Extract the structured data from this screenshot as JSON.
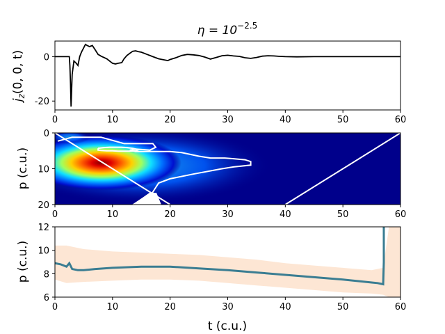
{
  "title": "η = 10^−2.5",
  "title_parts": {
    "base": "η = 10",
    "exponent": "−2.5"
  },
  "chart_data": [
    {
      "type": "line",
      "ylabel": "j_z(0, 0, t)",
      "ylabel_parts": {
        "main": "j",
        "sub": "z",
        "rest": "(0, 0, t)"
      },
      "xlim": [
        0,
        60
      ],
      "ylim": [
        -24,
        7
      ],
      "xticks": [
        "0",
        "10",
        "20",
        "30",
        "40",
        "50",
        "60"
      ],
      "yticks": [
        "0",
        "-20"
      ],
      "series": [
        {
          "color": "#000000",
          "x": [
            0,
            2.5,
            2.6,
            2.7,
            2.8,
            3.0,
            3.3,
            3.7,
            4.0,
            4.3,
            4.6,
            5.0,
            5.3,
            5.6,
            6.0,
            6.5,
            7.0,
            7.5,
            8.0,
            9.0,
            10.0,
            10.5,
            11.0,
            11.6,
            12.0,
            12.5,
            13.0,
            13.5,
            14.0,
            14.5,
            15.0,
            16.0,
            17.0,
            18.0,
            19.0,
            19.6,
            20.0,
            21.0,
            22.0,
            23.0,
            24.0,
            25.0,
            26.0,
            27.0,
            28.0,
            29.0,
            30.0,
            31.0,
            32.0,
            33.0,
            34.0,
            35.0,
            36.0,
            37.0,
            38.0,
            39.0,
            40.0,
            42.0,
            45.0,
            50.0,
            55.0,
            60.0
          ],
          "values": [
            0,
            0,
            -4,
            -12,
            -22.5,
            -8,
            -2,
            -3,
            -4,
            0,
            2,
            4,
            5.5,
            5,
            4.5,
            5,
            3,
            1,
            0.2,
            -1,
            -3,
            -3.3,
            -3,
            -2.7,
            -1,
            0.5,
            1.5,
            2.4,
            2.6,
            2.2,
            2,
            1,
            0,
            -1,
            -1.5,
            -1.8,
            -1.3,
            -0.5,
            0.5,
            1,
            0.8,
            0.5,
            -0.2,
            -1.1,
            -0.4,
            0.4,
            0.6,
            0.3,
            0.1,
            -0.5,
            -0.8,
            -0.4,
            0.2,
            0.4,
            0.3,
            0.1,
            0,
            -0.1,
            0,
            0,
            0,
            0
          ]
        }
      ]
    },
    {
      "type": "heatmap",
      "ylabel": "p (c.u.)",
      "xlim": [
        0,
        60
      ],
      "ylim": [
        20,
        0
      ],
      "xticks": [
        "0",
        "10",
        "20",
        "30",
        "40",
        "50",
        "60"
      ],
      "yticks": [
        "0",
        "10",
        "20"
      ],
      "colormap": "jet",
      "background_color": "#00008b",
      "peak": {
        "t": 8,
        "p": 8.5
      },
      "contour_color": "#ffffff",
      "contours": [
        {
          "t": [
            0.5,
            3,
            8,
            12,
            15,
            17,
            17.5,
            16.5,
            14,
            13,
            14,
            17,
            20,
            22,
            25,
            27,
            29.5,
            31,
            33,
            34,
            34,
            31,
            29,
            24,
            20,
            18,
            17,
            16,
            15.5,
            13.5
          ],
          "p": [
            2.3,
            1.2,
            1.2,
            3,
            3,
            3,
            4,
            4.8,
            4.5,
            4.8,
            5.2,
            5.2,
            5.2,
            5.5,
            6.5,
            7,
            7,
            7.2,
            7.5,
            8,
            9,
            9.5,
            10,
            11.5,
            12.8,
            14,
            16.5,
            19,
            20,
            20
          ]
        },
        {
          "t": [
            7.5,
            8.5,
            9.5,
            10.5,
            11.5,
            12.5,
            13.5,
            14.5,
            14.0,
            13.0,
            12.0,
            11.0,
            10.0,
            9.0,
            8.0,
            7.5,
            7.5
          ],
          "p": [
            4.3,
            4.1,
            4.0,
            4.0,
            4.0,
            4.1,
            4.3,
            4.7,
            5.0,
            5.1,
            5.1,
            5.1,
            5.0,
            5.0,
            4.9,
            4.8,
            4.3
          ]
        }
      ],
      "lines": [
        {
          "t": [
            0,
            20
          ],
          "p": [
            0,
            20
          ]
        },
        {
          "t": [
            40,
            60
          ],
          "p": [
            20,
            0
          ]
        }
      ]
    },
    {
      "type": "line",
      "xlabel": "t (c.u.)",
      "ylabel": "p (c.u.)",
      "xlim": [
        0,
        60
      ],
      "ylim": [
        6,
        12
      ],
      "xticks": [
        "0",
        "10",
        "20",
        "30",
        "40",
        "50",
        "60"
      ],
      "yticks": [
        "6",
        "8",
        "10",
        "12"
      ],
      "band_color": "#fde2cc",
      "line_color": "#3a7d92",
      "band": {
        "x": [
          0,
          2,
          5,
          10,
          15,
          20,
          25,
          30,
          35,
          40,
          45,
          50,
          55,
          57,
          58,
          60
        ],
        "lower": [
          7.5,
          7.2,
          7.3,
          7.4,
          7.5,
          7.5,
          7.4,
          7.2,
          7.0,
          6.8,
          6.6,
          6.4,
          6.3,
          6.2,
          6.0,
          6.0
        ],
        "upper": [
          10.4,
          10.4,
          10.1,
          9.9,
          9.8,
          9.7,
          9.6,
          9.4,
          9.2,
          8.9,
          8.7,
          8.5,
          8.3,
          8.5,
          12.0,
          12.0
        ]
      },
      "series": [
        {
          "x": [
            0,
            1,
            2,
            2.5,
            3,
            4,
            5,
            7,
            10,
            15,
            20,
            25,
            30,
            35,
            40,
            45,
            50,
            55,
            56,
            57,
            57.1,
            57.1
          ],
          "values": [
            8.9,
            8.8,
            8.6,
            8.9,
            8.4,
            8.3,
            8.3,
            8.4,
            8.5,
            8.6,
            8.6,
            8.45,
            8.3,
            8.1,
            7.9,
            7.7,
            7.5,
            7.25,
            7.2,
            7.1,
            9,
            12
          ]
        }
      ]
    }
  ]
}
